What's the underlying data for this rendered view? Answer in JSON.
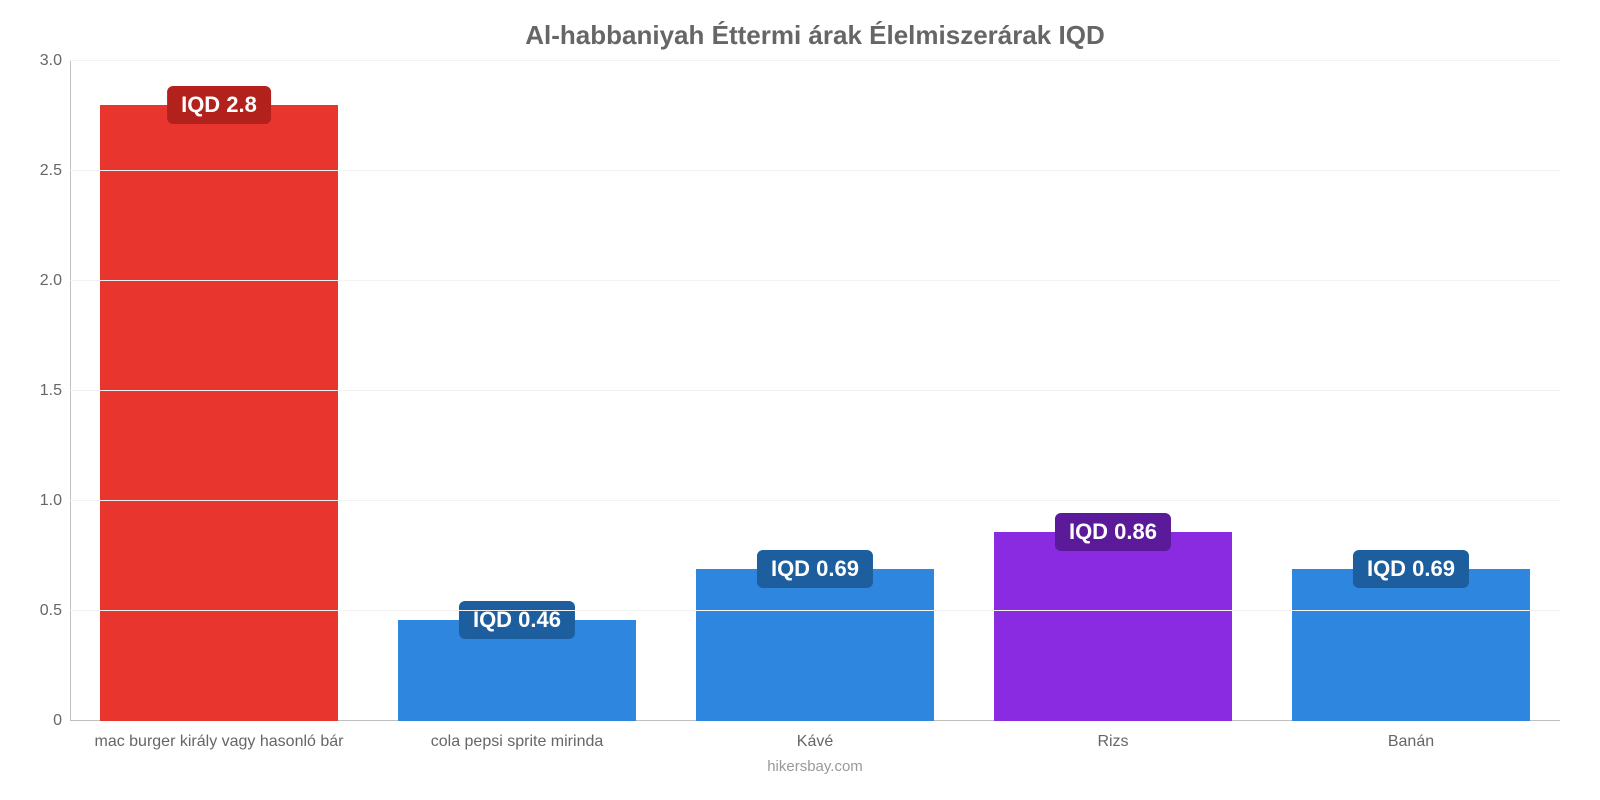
{
  "chart": {
    "type": "bar",
    "title": "Al-habbaniyah Éttermi árak Élelmiszerárak IQD",
    "title_fontsize": 26,
    "title_color": "#666666",
    "background_color": "#ffffff",
    "grid_color": "#f2f2f2",
    "axis_color": "#c0c0c0",
    "label_color": "#666666",
    "label_fontsize": 16,
    "ylim": [
      0,
      3.0
    ],
    "yticks": [
      0,
      0.5,
      1.0,
      1.5,
      2.0,
      2.5,
      3.0
    ],
    "ytick_labels": [
      "0",
      "0.5",
      "1.0",
      "1.5",
      "2.0",
      "2.5",
      "3.0"
    ],
    "bar_width_pct": 80,
    "categories": [
      "mac burger király vagy hasonló bár",
      "cola pepsi sprite mirinda",
      "Kávé",
      "Rizs",
      "Banán"
    ],
    "values": [
      2.8,
      0.46,
      0.69,
      0.86,
      0.69
    ],
    "bar_colors": [
      "#e8362f",
      "#2e86de",
      "#2e86de",
      "#8a2be2",
      "#2e86de"
    ],
    "value_labels": [
      "IQD 2.8",
      "IQD 0.46",
      "IQD 0.69",
      "IQD 0.86",
      "IQD 0.69"
    ],
    "badge_bg_colors": [
      "#b3211d",
      "#1d5f9e",
      "#1d5f9e",
      "#5a1a99",
      "#1d5f9e"
    ],
    "badge_text_color": "#ffffff",
    "badge_fontsize": 22,
    "footer": "hikersbay.com",
    "footer_color": "#999999"
  }
}
